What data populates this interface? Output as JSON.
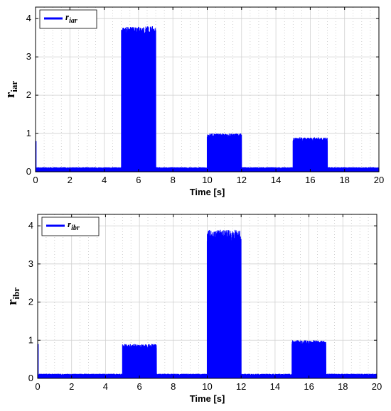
{
  "chart_data": [
    {
      "type": "line",
      "xlabel": "Time [s]",
      "ylabel": {
        "main": "r",
        "sub": "iar"
      },
      "legend": {
        "main": "r",
        "sub": "iar",
        "placement": "top-left"
      },
      "xlim": [
        0,
        20
      ],
      "ylim": [
        0,
        4.3
      ],
      "xticks": [
        0,
        2,
        4,
        6,
        8,
        10,
        12,
        14,
        16,
        18,
        20
      ],
      "yticks": [
        0,
        1,
        2,
        3,
        4
      ],
      "grid": true,
      "color": "#0000ff",
      "baseline": [
        0.07,
        0.12
      ],
      "spike": {
        "x": 0,
        "value": 0.8
      },
      "segments": [
        {
          "x_start": 5.0,
          "x_end": 7.0,
          "level": 3.6,
          "peak": 3.8
        },
        {
          "x_start": 10.0,
          "x_end": 12.0,
          "level": 0.9,
          "peak": 1.0
        },
        {
          "x_start": 15.0,
          "x_end": 17.0,
          "level": 0.8,
          "peak": 0.9
        }
      ]
    },
    {
      "type": "line",
      "xlabel": "Time [s]",
      "ylabel": {
        "main": "r",
        "sub": "ibr"
      },
      "legend": {
        "main": "r",
        "sub": "ibr",
        "placement": "top-left"
      },
      "xlim": [
        0,
        20
      ],
      "ylim": [
        0,
        4.3
      ],
      "xticks": [
        0,
        2,
        4,
        6,
        8,
        10,
        12,
        14,
        16,
        18,
        20
      ],
      "yticks": [
        0,
        1,
        2,
        3,
        4
      ],
      "grid": true,
      "color": "#0000ff",
      "baseline": [
        0.07,
        0.12
      ],
      "spike": {
        "x": 0,
        "value": 0.9
      },
      "segments": [
        {
          "x_start": 5.0,
          "x_end": 7.0,
          "level": 0.8,
          "peak": 0.9
        },
        {
          "x_start": 10.0,
          "x_end": 12.0,
          "level": 3.6,
          "peak": 3.9
        },
        {
          "x_start": 15.0,
          "x_end": 17.0,
          "level": 0.9,
          "peak": 1.0
        }
      ]
    }
  ]
}
